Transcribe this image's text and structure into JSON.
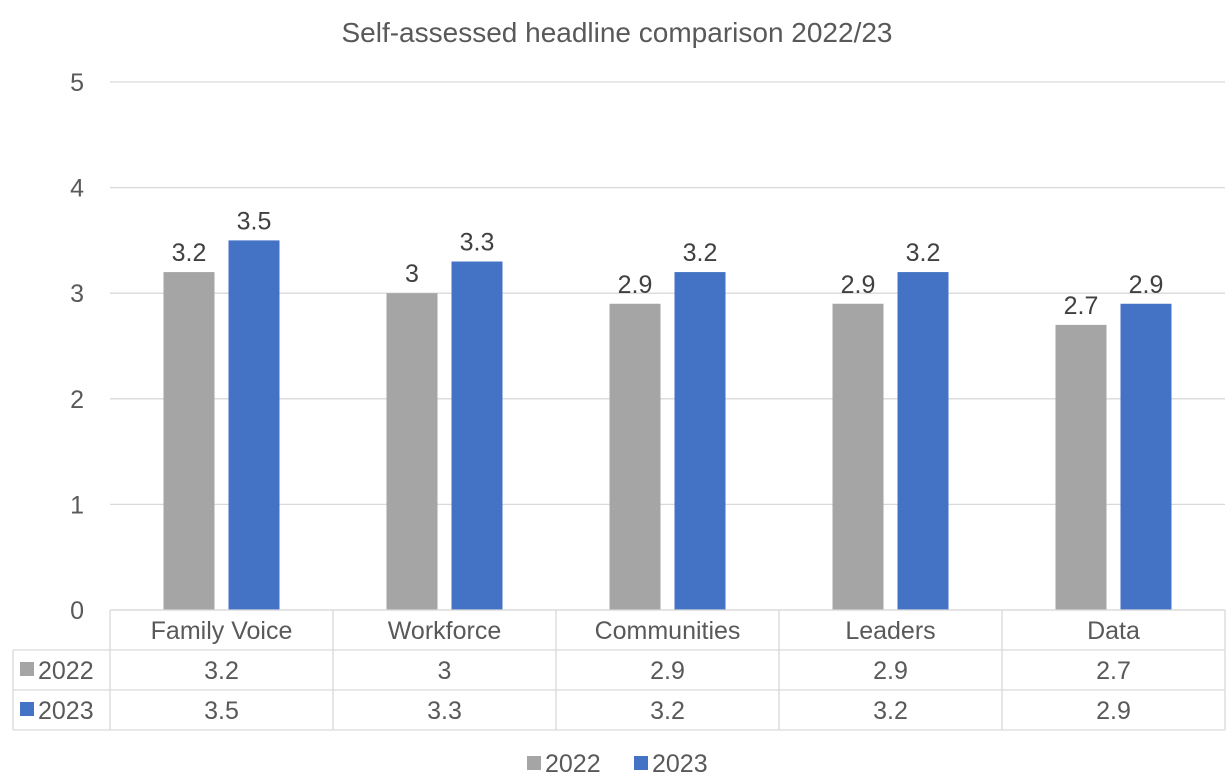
{
  "chart_data": {
    "type": "bar",
    "title": "Self-assessed headline comparison 2022/23",
    "categories": [
      "Family Voice",
      "Workforce",
      "Communities",
      "Leaders",
      "Data"
    ],
    "series": [
      {
        "name": "2022",
        "values": [
          3.2,
          3,
          2.9,
          2.9,
          2.7
        ],
        "labels": [
          "3.2",
          "3",
          "2.9",
          "2.9",
          "2.7"
        ],
        "color": "#a5a5a5"
      },
      {
        "name": "2023",
        "values": [
          3.5,
          3.3,
          3.2,
          3.2,
          2.9
        ],
        "labels": [
          "3.5",
          "3.3",
          "3.2",
          "3.2",
          "2.9"
        ],
        "color": "#4472c4"
      }
    ],
    "ylim": [
      0,
      5
    ],
    "yticks": [
      "0",
      "1",
      "2",
      "3",
      "4",
      "5"
    ],
    "grid": true,
    "data_table": true,
    "legend_position": "bottom"
  },
  "colors": {
    "grid": "#d9d9d9",
    "text": "#595959"
  }
}
